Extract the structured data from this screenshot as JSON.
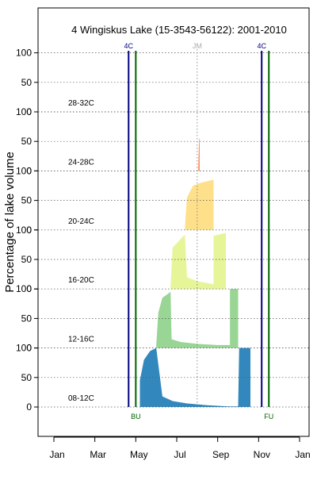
{
  "chart_data": {
    "type": "area",
    "title": "4 Wingiskus Lake (15-3543-56122): 2001-2010",
    "ylabel": "Percentage of lake volume",
    "xlabel": "",
    "x_ticks": [
      "Jan",
      "Mar",
      "May",
      "Jul",
      "Sep",
      "Nov",
      "Jan"
    ],
    "x_tick_months": [
      0,
      2,
      4,
      6,
      8,
      10,
      12
    ],
    "xlim_months": [
      -0.2,
      12.2
    ],
    "band_tick_labels": [
      "0",
      "50",
      "100"
    ],
    "band_max": 100,
    "grid": "dotted horizontal at 0, 50, 100 of each band",
    "bands": [
      {
        "label": "08-12C",
        "color": "#3288bd",
        "edge": [
          [
            4.2,
            45
          ],
          [
            4.4,
            80
          ],
          [
            4.7,
            95
          ],
          [
            5.0,
            100
          ],
          [
            5.3,
            18
          ],
          [
            5.8,
            10
          ],
          [
            6.5,
            6
          ],
          [
            7.5,
            3
          ],
          [
            8.5,
            1
          ],
          [
            9.0,
            1
          ],
          [
            9.05,
            100
          ],
          [
            9.6,
            100
          ],
          [
            9.6,
            0
          ]
        ]
      },
      {
        "label": "12-16C",
        "color": "#99d594",
        "edge": [
          [
            5.0,
            5
          ],
          [
            5.1,
            60
          ],
          [
            5.3,
            85
          ],
          [
            5.7,
            95
          ],
          [
            5.75,
            15
          ],
          [
            6.2,
            10
          ],
          [
            7.0,
            7
          ],
          [
            8.0,
            5
          ],
          [
            8.6,
            5
          ],
          [
            8.6,
            100
          ],
          [
            9.0,
            100
          ],
          [
            9.0,
            0
          ]
        ]
      },
      {
        "label": "16-20C",
        "color": "#e6f598",
        "edge": [
          [
            5.7,
            5
          ],
          [
            5.8,
            70
          ],
          [
            6.2,
            85
          ],
          [
            6.4,
            92
          ],
          [
            6.5,
            20
          ],
          [
            7.0,
            13
          ],
          [
            7.5,
            10
          ],
          [
            7.8,
            8
          ],
          [
            7.8,
            90
          ],
          [
            8.4,
            95
          ],
          [
            8.4,
            0
          ]
        ]
      },
      {
        "label": "20-24C",
        "color": "#fee08b",
        "edge": [
          [
            6.4,
            5
          ],
          [
            6.5,
            55
          ],
          [
            6.8,
            75
          ],
          [
            7.2,
            80
          ],
          [
            7.8,
            85
          ],
          [
            7.8,
            0
          ]
        ]
      },
      {
        "label": "24-28C",
        "color": "#fc8d59",
        "edge": [
          [
            7.05,
            5
          ],
          [
            7.08,
            40
          ],
          [
            7.1,
            55
          ],
          [
            7.12,
            55
          ],
          [
            7.12,
            0
          ]
        ]
      },
      {
        "label": "28-32C",
        "color": "#d53e4f",
        "edge": []
      }
    ],
    "vlines": [
      {
        "month": 3.65,
        "label": "4C",
        "color": "#000080",
        "label_position": "top"
      },
      {
        "month": 4.0,
        "label": "BU",
        "color": "#006400",
        "label_position": "bottom"
      },
      {
        "month": 10.15,
        "label": "4C",
        "color": "#000080",
        "label_position": "top"
      },
      {
        "month": 10.5,
        "label": "FU",
        "color": "#006400",
        "label_position": "bottom"
      },
      {
        "month": 7.0,
        "label": "JM",
        "color": "#aaaaaa",
        "label_position": "top",
        "style": "dotted"
      }
    ],
    "legend": "none"
  }
}
